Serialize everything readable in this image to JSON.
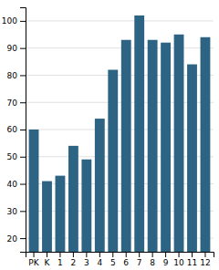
{
  "chart_data": {
    "type": "bar",
    "categories": [
      "PK",
      "K",
      "1",
      "2",
      "3",
      "4",
      "5",
      "6",
      "7",
      "8",
      "9",
      "10",
      "11",
      "12"
    ],
    "values": [
      60,
      41,
      43,
      54,
      49,
      64,
      82,
      93,
      102,
      93,
      92,
      95,
      84,
      94
    ],
    "color": "#2d6484",
    "ylim": [
      15,
      105
    ],
    "yticks": [
      20,
      30,
      40,
      50,
      60,
      70,
      80,
      90,
      100
    ],
    "grid": true
  }
}
